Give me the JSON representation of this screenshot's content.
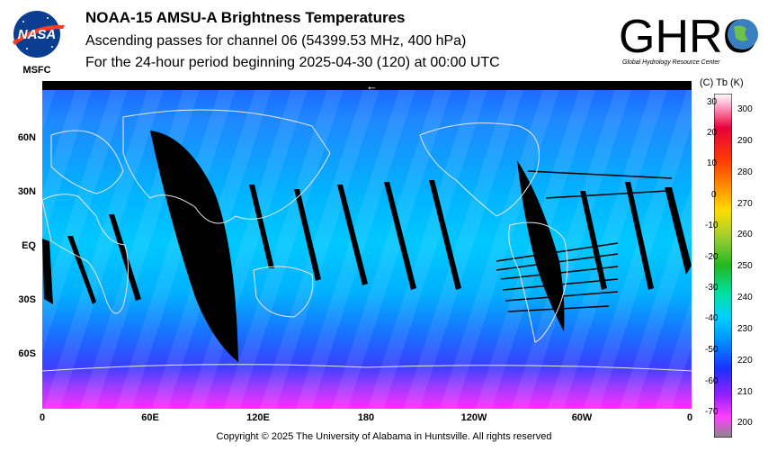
{
  "header": {
    "logo_left_text": "NASA",
    "logo_left_sub": "MSFC",
    "title": "NOAA-15 AMSU-A Brightness Temperatures",
    "subtitle": "Ascending passes for channel 06 (54399.53 MHz, 400 hPa)",
    "period": "For the 24-hour period beginning 2025-04-30 (120) at 00:00 UTC",
    "logo_right_text": "GHRC",
    "logo_right_sub": "Global Hydrology Resource Center"
  },
  "map": {
    "direction_arrow": "←",
    "lat_labels": [
      "60N",
      "30N",
      "EQ",
      "30S",
      "60S"
    ],
    "lon_labels": [
      "0",
      "60E",
      "120E",
      "180",
      "120W",
      "60W",
      "0"
    ],
    "colors": {
      "ocean_top": "#1f7bff",
      "tropics": "#00b8ff",
      "south_pole": "#ff33ff",
      "gap": "#000000",
      "coast": "#e8e8e8"
    }
  },
  "colorbar": {
    "header": "(C)  Tb  (K)",
    "celsius_ticks": [
      "30",
      "20",
      "10",
      "0",
      "-10",
      "-20",
      "-30",
      "-40",
      "-50",
      "-60",
      "-70"
    ],
    "kelvin_ticks": [
      "300",
      "290",
      "280",
      "270",
      "260",
      "250",
      "240",
      "230",
      "220",
      "210",
      "200"
    ]
  },
  "footer": {
    "copyright": "Copyright © 2025 The University of Alabama in Huntsville.  All rights reserved"
  }
}
